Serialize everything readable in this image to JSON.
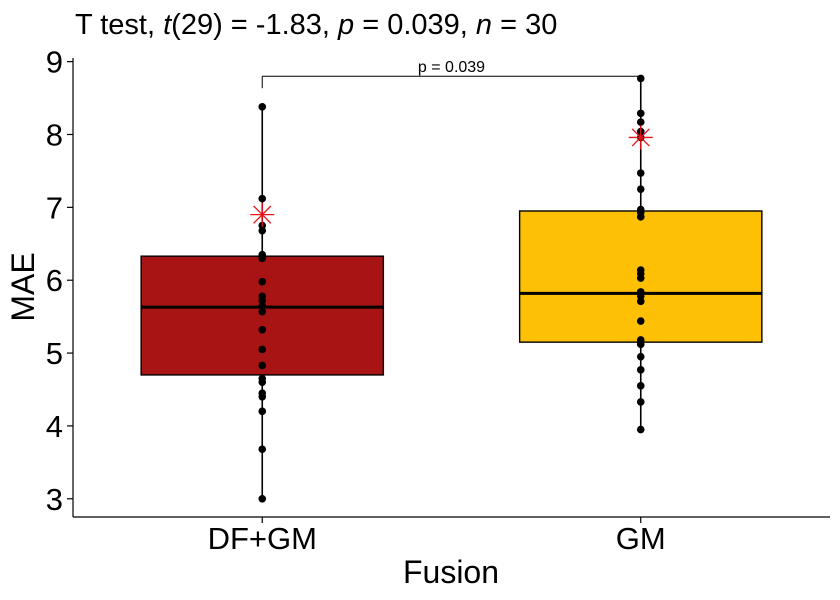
{
  "chart_data": {
    "type": "box",
    "title_parts": [
      "T test, ",
      "t",
      "(29) = -1.83, ",
      "p",
      " = 0.039, ",
      "n",
      " = 30"
    ],
    "xlabel": "Fusion",
    "ylabel": "MAE",
    "ylim": [
      2.75,
      9.05
    ],
    "yticks": [
      3,
      4,
      5,
      6,
      7,
      8,
      9
    ],
    "categories": [
      "DF+GM",
      "GM"
    ],
    "colors": {
      "DF+GM": "#A81313",
      "GM": "#FEC004",
      "mean_marker": "#E8141A"
    },
    "boxes": [
      {
        "category": "DF+GM",
        "min": 3.0,
        "q1": 4.7,
        "median": 5.63,
        "q3": 6.33,
        "max": 8.38,
        "mean": 6.9
      },
      {
        "category": "GM",
        "min": 3.95,
        "q1": 5.15,
        "median": 5.82,
        "q3": 6.95,
        "max": 8.77,
        "mean": 7.96
      }
    ],
    "points": {
      "DF+GM": [
        3.0,
        3.68,
        4.2,
        4.4,
        4.45,
        4.6,
        4.65,
        4.83,
        5.05,
        5.32,
        5.57,
        5.65,
        5.72,
        5.78,
        5.98,
        6.3,
        6.35,
        6.68,
        6.75,
        7.12,
        8.38
      ],
      "GM": [
        3.95,
        4.33,
        4.55,
        4.77,
        4.95,
        5.12,
        5.18,
        5.44,
        5.71,
        5.78,
        5.84,
        6.03,
        6.09,
        6.14,
        6.87,
        6.93,
        6.97,
        7.25,
        7.47,
        7.96,
        8.04,
        8.17,
        8.29,
        8.77
      ]
    },
    "annotation": {
      "text": "p = 0.039",
      "y": 8.8
    },
    "grid": false,
    "legend": "none"
  }
}
